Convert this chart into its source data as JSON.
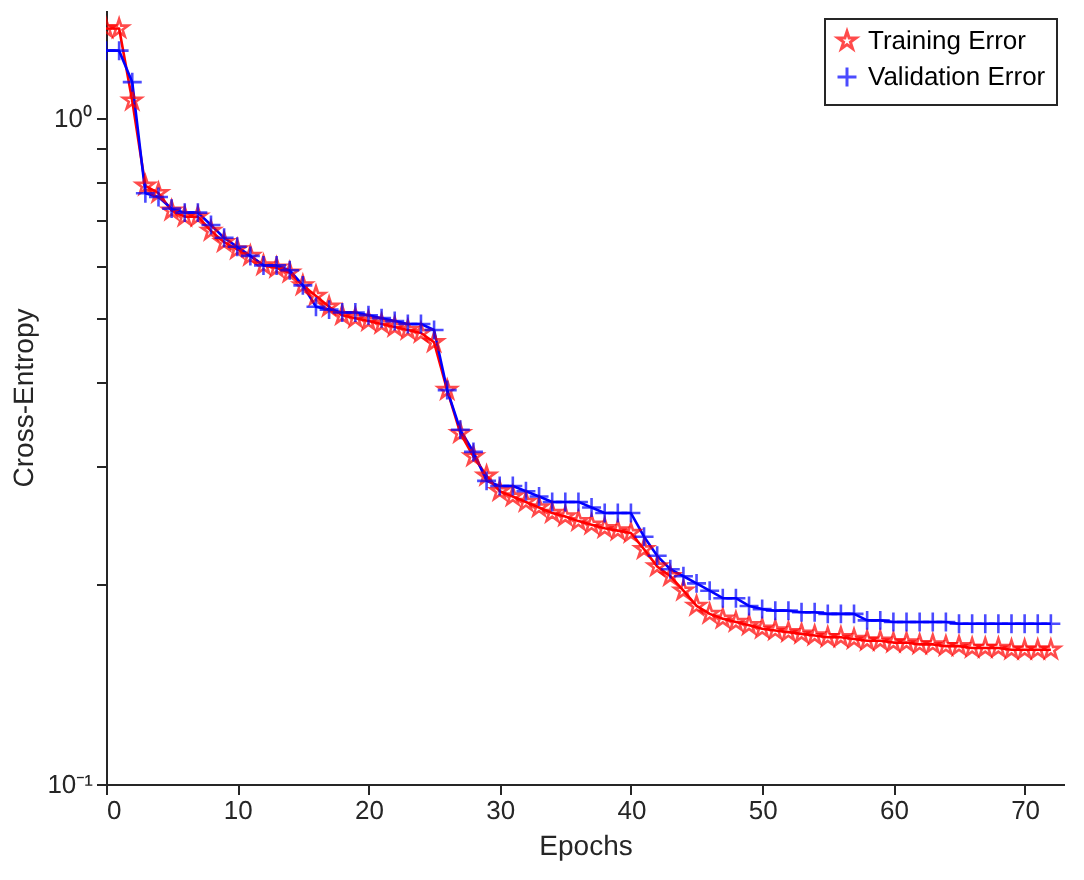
{
  "chart_data": {
    "type": "line",
    "xlabel": "Epochs",
    "ylabel": "Cross-Entropy",
    "log": "y",
    "grid": false,
    "legend": "top right",
    "xlim": [
      0,
      73
    ],
    "xticks": [
      0,
      10,
      20,
      30,
      40,
      50,
      60,
      70
    ],
    "ylim": [
      0.1,
      1.45
    ],
    "yticks": [
      {
        "value": 0.1,
        "label": "10⁻¹"
      },
      {
        "value": 0.2,
        "label": null
      },
      {
        "value": 0.3,
        "label": null
      },
      {
        "value": 0.4,
        "label": null
      },
      {
        "value": 0.5,
        "label": null
      },
      {
        "value": 0.6,
        "label": null
      },
      {
        "value": 0.7,
        "label": null
      },
      {
        "value": 0.8,
        "label": null
      },
      {
        "value": 0.9,
        "label": null
      },
      {
        "value": 1,
        "label": "10⁰"
      }
    ],
    "x": [
      0,
      1,
      2,
      3,
      4,
      5,
      6,
      7,
      8,
      9,
      10,
      11,
      12,
      13,
      14,
      15,
      16,
      17,
      18,
      19,
      20,
      21,
      22,
      23,
      24,
      25,
      26,
      27,
      28,
      29,
      30,
      31,
      32,
      33,
      34,
      35,
      36,
      37,
      38,
      39,
      40,
      41,
      42,
      43,
      44,
      45,
      46,
      47,
      48,
      49,
      50,
      51,
      52,
      53,
      54,
      55,
      56,
      57,
      58,
      59,
      60,
      61,
      62,
      63,
      64,
      65,
      66,
      67,
      68,
      69,
      70,
      71,
      72
    ],
    "series": [
      {
        "name": "Training Error",
        "color": "#ff0000",
        "marker": "star",
        "line_style": "solid",
        "values": [
          1.36,
          1.36,
          1.06,
          0.79,
          0.77,
          0.725,
          0.71,
          0.71,
          0.676,
          0.65,
          0.634,
          0.62,
          0.6,
          0.595,
          0.585,
          0.56,
          0.54,
          0.52,
          0.505,
          0.5,
          0.495,
          0.49,
          0.485,
          0.48,
          0.475,
          0.46,
          0.39,
          0.336,
          0.31,
          0.29,
          0.275,
          0.27,
          0.265,
          0.26,
          0.255,
          0.252,
          0.248,
          0.245,
          0.242,
          0.24,
          0.238,
          0.225,
          0.212,
          0.205,
          0.195,
          0.185,
          0.18,
          0.177,
          0.175,
          0.173,
          0.171,
          0.17,
          0.169,
          0.168,
          0.167,
          0.166,
          0.166,
          0.165,
          0.164,
          0.164,
          0.163,
          0.163,
          0.162,
          0.162,
          0.161,
          0.161,
          0.16,
          0.16,
          0.16,
          0.159,
          0.159,
          0.159,
          0.159
        ]
      },
      {
        "name": "Validation Error",
        "color": "#0000ff",
        "marker": "cross",
        "line_style": "solid",
        "values": [
          1.26,
          1.26,
          1.13,
          0.77,
          0.76,
          0.73,
          0.72,
          0.72,
          0.69,
          0.66,
          0.64,
          0.62,
          0.6,
          0.6,
          0.59,
          0.56,
          0.52,
          0.515,
          0.51,
          0.51,
          0.505,
          0.5,
          0.495,
          0.49,
          0.49,
          0.48,
          0.39,
          0.34,
          0.315,
          0.285,
          0.28,
          0.28,
          0.275,
          0.27,
          0.265,
          0.265,
          0.265,
          0.26,
          0.255,
          0.255,
          0.255,
          0.235,
          0.22,
          0.21,
          0.205,
          0.2,
          0.195,
          0.19,
          0.19,
          0.185,
          0.183,
          0.182,
          0.182,
          0.181,
          0.181,
          0.18,
          0.18,
          0.18,
          0.176,
          0.176,
          0.175,
          0.175,
          0.175,
          0.175,
          0.175,
          0.174,
          0.174,
          0.174,
          0.174,
          0.174,
          0.174,
          0.174,
          0.174
        ]
      }
    ]
  }
}
